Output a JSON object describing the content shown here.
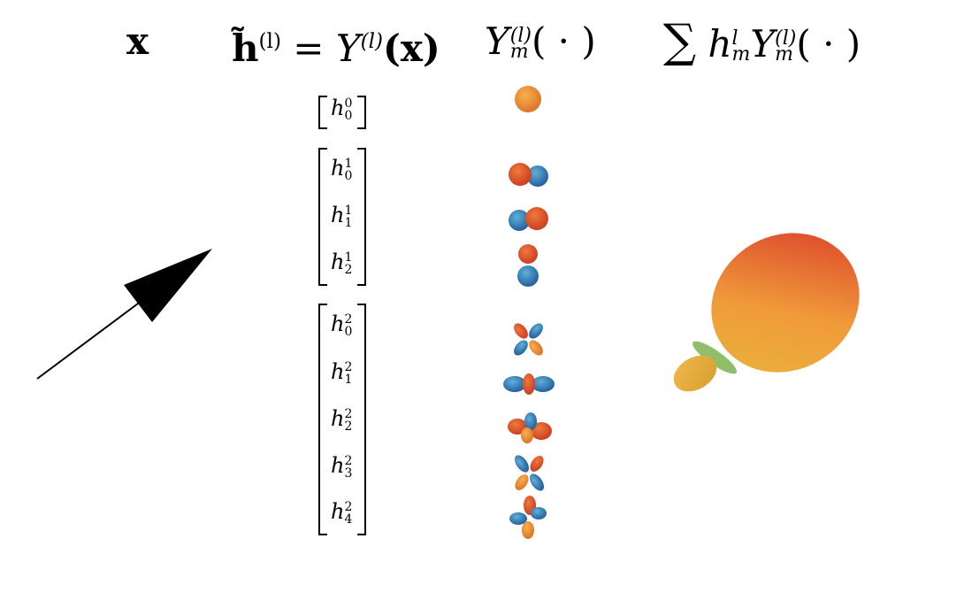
{
  "headers": {
    "input": "x",
    "embedding_lhs": "h̃",
    "embedding_sup": "(l)",
    "embedding_eq": " = Y",
    "embedding_sup2": "(l)",
    "embedding_arg": "(x)",
    "basis_Y": "Y",
    "basis_sup": "(l)",
    "basis_sub": "m",
    "basis_arg": "( · )",
    "sum_symbol": "∑",
    "sum_h": "h",
    "sum_h_sup": "l",
    "sum_h_sub": "m",
    "sum_Y": "Y",
    "sum_Y_sup": "(l)",
    "sum_Y_sub": "m",
    "sum_arg": "( · )"
  },
  "coefficients": [
    {
      "base": "h",
      "sup": "0",
      "sub": "0"
    },
    {
      "base": "h",
      "sup": "1",
      "sub": "0"
    },
    {
      "base": "h",
      "sup": "1",
      "sub": "1"
    },
    {
      "base": "h",
      "sup": "1",
      "sub": "2"
    },
    {
      "base": "h",
      "sup": "2",
      "sub": "0"
    },
    {
      "base": "h",
      "sup": "2",
      "sub": "1"
    },
    {
      "base": "h",
      "sup": "2",
      "sub": "2"
    },
    {
      "base": "h",
      "sup": "2",
      "sub": "3"
    },
    {
      "base": "h",
      "sup": "2",
      "sub": "4"
    }
  ],
  "colors": {
    "warm": "#e4452b",
    "mid": "#f0a23a",
    "cool": "#2a73b8",
    "green": "#8fbf6a",
    "yellow": "#e6c24a"
  }
}
